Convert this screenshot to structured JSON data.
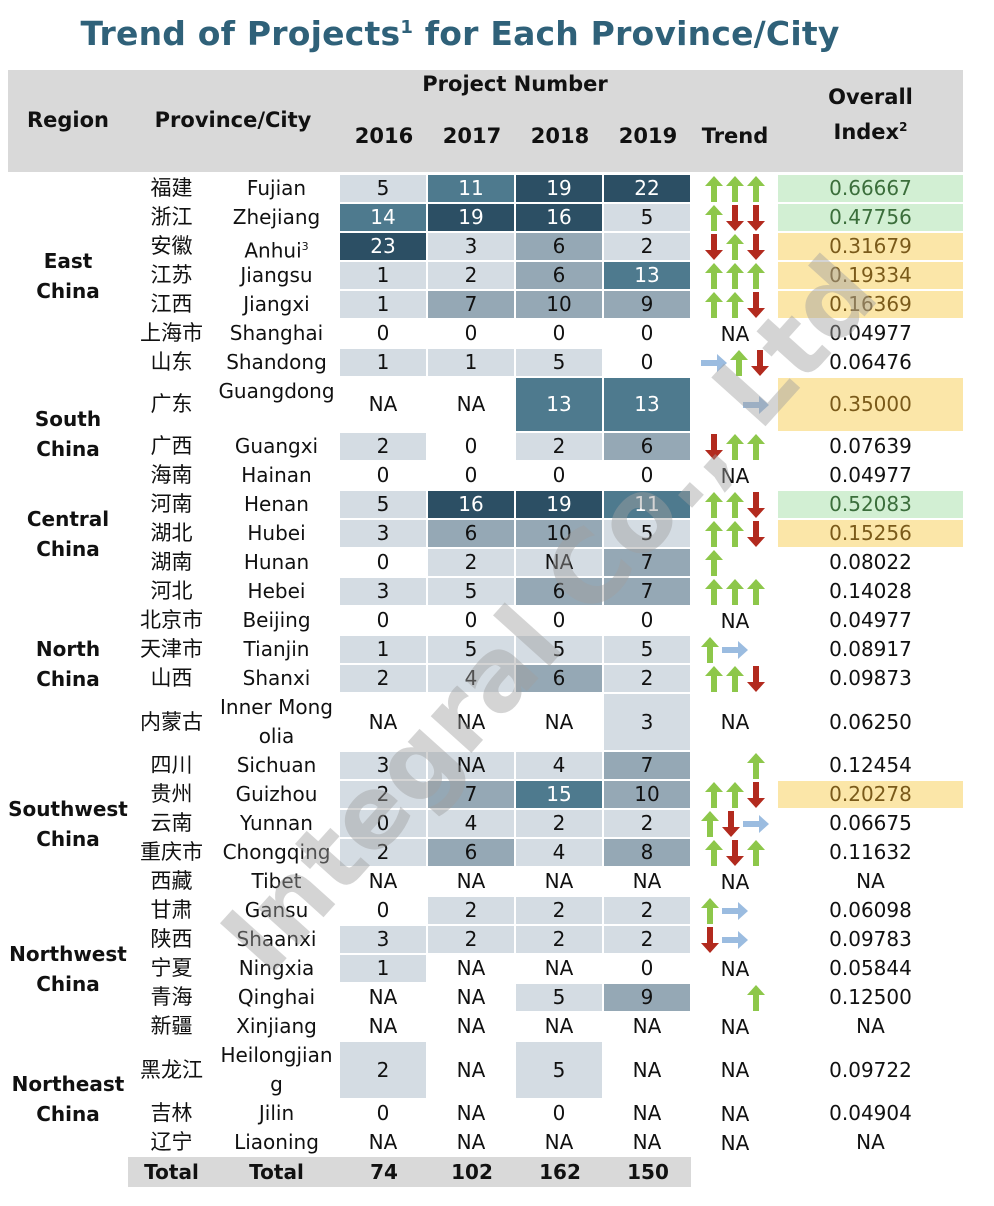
{
  "title": "Trend of Projects",
  "title_sup": "1",
  "title_rest": " for Each Province/City",
  "header": {
    "region": "Region",
    "province": "Province/City",
    "project_number": "Project Number",
    "years": [
      "2016",
      "2017",
      "2018",
      "2019"
    ],
    "trend": "Trend",
    "overall_line1": "Overall",
    "overall_line2": "Index",
    "overall_sup": "2"
  },
  "colors": {
    "title": "#2f6179",
    "cell_1": "#d4dce3",
    "cell_2": "#95a8b5",
    "cell_3": "#4e7a8e",
    "cell_4": "#2c4f64",
    "index_green": "#d2efd3",
    "index_yellow": "#fbe6a8",
    "arrow_up": "#8dc74a",
    "arrow_down": "#b22a1e",
    "arrow_flat": "#9bbce0"
  },
  "regions": [
    {
      "name_line1": "East",
      "name_line2": "China"
    },
    {
      "name_line1": "South",
      "name_line2": "China"
    },
    {
      "name_line1": "Central",
      "name_line2": "China"
    },
    {
      "name_line1": "North",
      "name_line2": "China"
    },
    {
      "name_line1": "Southwest",
      "name_line2": "China"
    },
    {
      "name_line1": "Northwest",
      "name_line2": "China"
    },
    {
      "name_line1": "Northeast",
      "name_line2": "China"
    }
  ],
  "rows": [
    {
      "cn": "福建",
      "en": "Fujian",
      "sup": "",
      "v": [
        "5",
        "11",
        "19",
        "22"
      ],
      "s": [
        1,
        3,
        4,
        4
      ],
      "t": [
        "up",
        "up",
        "up"
      ],
      "idx": "0.66667",
      "hl": "green"
    },
    {
      "cn": "浙江",
      "en": "Zhejiang",
      "sup": "",
      "v": [
        "14",
        "19",
        "16",
        "5"
      ],
      "s": [
        3,
        4,
        4,
        1
      ],
      "t": [
        "up",
        "down",
        "down"
      ],
      "idx": "0.47756",
      "hl": "green"
    },
    {
      "cn": "安徽",
      "en": "Anhui",
      "sup": "3",
      "v": [
        "23",
        "3",
        "6",
        "2"
      ],
      "s": [
        4,
        1,
        2,
        1
      ],
      "t": [
        "down",
        "up",
        "down"
      ],
      "idx": "0.31679",
      "hl": "yellow"
    },
    {
      "cn": "江苏",
      "en": "Jiangsu",
      "sup": "",
      "v": [
        "1",
        "2",
        "6",
        "13"
      ],
      "s": [
        1,
        1,
        2,
        3
      ],
      "t": [
        "up",
        "up",
        "up"
      ],
      "idx": "0.19334",
      "hl": "yellow"
    },
    {
      "cn": "江西",
      "en": "Jiangxi",
      "sup": "",
      "v": [
        "1",
        "7",
        "10",
        "9"
      ],
      "s": [
        1,
        2,
        2,
        2
      ],
      "t": [
        "up",
        "up",
        "down"
      ],
      "idx": "0.16369",
      "hl": "yellow"
    },
    {
      "cn": "上海市",
      "en": "Shanghai",
      "sup": "",
      "v": [
        "0",
        "0",
        "0",
        "0"
      ],
      "s": [
        0,
        0,
        0,
        0
      ],
      "t": [
        "NA"
      ],
      "idx": "0.04977",
      "hl": ""
    },
    {
      "cn": "山东",
      "en": "Shandong",
      "sup": "",
      "v": [
        "1",
        "1",
        "5",
        "0"
      ],
      "s": [
        1,
        1,
        1,
        0
      ],
      "t": [
        "flat",
        "up",
        "down"
      ],
      "idx": "0.06476",
      "hl": ""
    },
    {
      "cn": "广东",
      "en": "Guangdong",
      "sup": "",
      "v": [
        "NA",
        "NA",
        "13",
        "13"
      ],
      "s": [
        0,
        0,
        3,
        3
      ],
      "t": [
        "",
        "",
        "flat"
      ],
      "idx": "0.35000",
      "hl": "yellow"
    },
    {
      "cn": "广西",
      "en": "Guangxi",
      "sup": "",
      "v": [
        "2",
        "0",
        "2",
        "6"
      ],
      "s": [
        1,
        0,
        1,
        2
      ],
      "t": [
        "down",
        "up",
        "up"
      ],
      "idx": "0.07639",
      "hl": ""
    },
    {
      "cn": "海南",
      "en": "Hainan",
      "sup": "",
      "v": [
        "0",
        "0",
        "0",
        "0"
      ],
      "s": [
        0,
        0,
        0,
        0
      ],
      "t": [
        "NA"
      ],
      "idx": "0.04977",
      "hl": ""
    },
    {
      "cn": "河南",
      "en": "Henan",
      "sup": "",
      "v": [
        "5",
        "16",
        "19",
        "11"
      ],
      "s": [
        1,
        4,
        4,
        3
      ],
      "t": [
        "up",
        "up",
        "down"
      ],
      "idx": "0.52083",
      "hl": "green"
    },
    {
      "cn": "湖北",
      "en": "Hubei",
      "sup": "",
      "v": [
        "3",
        "6",
        "10",
        "5"
      ],
      "s": [
        1,
        2,
        2,
        1
      ],
      "t": [
        "up",
        "up",
        "down"
      ],
      "idx": "0.15256",
      "hl": "yellow"
    },
    {
      "cn": "湖南",
      "en": "Hunan",
      "sup": "",
      "v": [
        "0",
        "2",
        "NA",
        "7"
      ],
      "s": [
        0,
        1,
        1,
        2
      ],
      "t": [
        "up",
        "",
        ""
      ],
      "idx": "0.08022",
      "hl": ""
    },
    {
      "cn": "河北",
      "en": "Hebei",
      "sup": "",
      "v": [
        "3",
        "5",
        "6",
        "7"
      ],
      "s": [
        1,
        1,
        2,
        2
      ],
      "t": [
        "up",
        "up",
        "up"
      ],
      "idx": "0.14028",
      "hl": ""
    },
    {
      "cn": "北京市",
      "en": "Beijing",
      "sup": "",
      "v": [
        "0",
        "0",
        "0",
        "0"
      ],
      "s": [
        0,
        0,
        0,
        0
      ],
      "t": [
        "NA"
      ],
      "idx": "0.04977",
      "hl": ""
    },
    {
      "cn": "天津市",
      "en": "Tianjin",
      "sup": "",
      "v": [
        "1",
        "5",
        "5",
        "5"
      ],
      "s": [
        1,
        1,
        1,
        1
      ],
      "t": [
        "up",
        "flat",
        ""
      ],
      "idx": "0.08917",
      "hl": ""
    },
    {
      "cn": "山西",
      "en": "Shanxi",
      "sup": "",
      "v": [
        "2",
        "4",
        "6",
        "2"
      ],
      "s": [
        1,
        1,
        2,
        1
      ],
      "t": [
        "up",
        "up",
        "down"
      ],
      "idx": "0.09873",
      "hl": ""
    },
    {
      "cn": "内蒙古",
      "en": "Inner Mongolia",
      "sup": "",
      "v": [
        "NA",
        "NA",
        "NA",
        "3"
      ],
      "s": [
        0,
        0,
        0,
        1
      ],
      "t": [
        "NA"
      ],
      "idx": "0.06250",
      "hl": ""
    },
    {
      "cn": "四川",
      "en": "Sichuan",
      "sup": "",
      "v": [
        "3",
        "NA",
        "4",
        "7"
      ],
      "s": [
        1,
        1,
        1,
        2
      ],
      "t": [
        "",
        "",
        "up"
      ],
      "idx": "0.12454",
      "hl": ""
    },
    {
      "cn": "贵州",
      "en": "Guizhou",
      "sup": "",
      "v": [
        "2",
        "7",
        "15",
        "10"
      ],
      "s": [
        1,
        2,
        3,
        2
      ],
      "t": [
        "up",
        "up",
        "down"
      ],
      "idx": "0.20278",
      "hl": "yellow"
    },
    {
      "cn": "云南",
      "en": "Yunnan",
      "sup": "",
      "v": [
        "0",
        "4",
        "2",
        "2"
      ],
      "s": [
        1,
        1,
        1,
        1
      ],
      "t": [
        "up",
        "down",
        "flat"
      ],
      "idx": "0.06675",
      "hl": ""
    },
    {
      "cn": "重庆市",
      "en": "Chongqing",
      "sup": "",
      "v": [
        "2",
        "6",
        "4",
        "8"
      ],
      "s": [
        1,
        2,
        1,
        2
      ],
      "t": [
        "up",
        "down",
        "up"
      ],
      "idx": "0.11632",
      "hl": ""
    },
    {
      "cn": "西藏",
      "en": "Tibet",
      "sup": "",
      "v": [
        "NA",
        "NA",
        "NA",
        "NA"
      ],
      "s": [
        0,
        0,
        0,
        0
      ],
      "t": [
        "NA"
      ],
      "idx": "NA",
      "hl": ""
    },
    {
      "cn": "甘肃",
      "en": "Gansu",
      "sup": "",
      "v": [
        "0",
        "2",
        "2",
        "2"
      ],
      "s": [
        0,
        1,
        1,
        1
      ],
      "t": [
        "up",
        "flat",
        ""
      ],
      "idx": "0.06098",
      "hl": ""
    },
    {
      "cn": "陕西",
      "en": "Shaanxi",
      "sup": "",
      "v": [
        "3",
        "2",
        "2",
        "2"
      ],
      "s": [
        1,
        1,
        1,
        1
      ],
      "t": [
        "down",
        "flat",
        ""
      ],
      "idx": "0.09783",
      "hl": ""
    },
    {
      "cn": "宁夏",
      "en": "Ningxia",
      "sup": "",
      "v": [
        "1",
        "NA",
        "NA",
        "0"
      ],
      "s": [
        1,
        0,
        0,
        0
      ],
      "t": [
        "NA"
      ],
      "idx": "0.05844",
      "hl": ""
    },
    {
      "cn": "青海",
      "en": "Qinghai",
      "sup": "",
      "v": [
        "NA",
        "NA",
        "5",
        "9"
      ],
      "s": [
        0,
        0,
        1,
        2
      ],
      "t": [
        "",
        "",
        "up"
      ],
      "idx": "0.12500",
      "hl": ""
    },
    {
      "cn": "新疆",
      "en": "Xinjiang",
      "sup": "",
      "v": [
        "NA",
        "NA",
        "NA",
        "NA"
      ],
      "s": [
        0,
        0,
        0,
        0
      ],
      "t": [
        "NA"
      ],
      "idx": "NA",
      "hl": ""
    },
    {
      "cn": "黑龙江",
      "en": "Heilongjiang",
      "sup": "",
      "v": [
        "2",
        "NA",
        "5",
        "NA"
      ],
      "s": [
        1,
        0,
        1,
        0
      ],
      "t": [
        "NA"
      ],
      "idx": "0.09722",
      "hl": ""
    },
    {
      "cn": "吉林",
      "en": "Jilin",
      "sup": "",
      "v": [
        "0",
        "NA",
        "0",
        "NA"
      ],
      "s": [
        0,
        0,
        0,
        0
      ],
      "t": [
        "NA"
      ],
      "idx": "0.04904",
      "hl": ""
    },
    {
      "cn": "辽宁",
      "en": "Liaoning",
      "sup": "",
      "v": [
        "NA",
        "NA",
        "NA",
        "NA"
      ],
      "s": [
        0,
        0,
        0,
        0
      ],
      "t": [
        "NA"
      ],
      "idx": "NA",
      "hl": ""
    }
  ],
  "total": {
    "label_region": "Total",
    "label_province": "Total",
    "values": [
      "74",
      "102",
      "162",
      "150"
    ]
  },
  "watermark": "Integral Co., Ltd"
}
